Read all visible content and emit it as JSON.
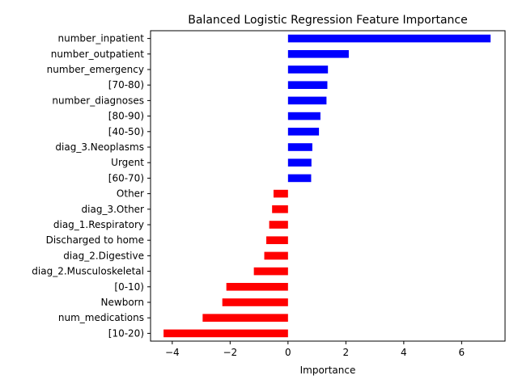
{
  "chart_data": {
    "type": "bar",
    "orientation": "horizontal",
    "title": "Balanced Logistic Regression Feature Importance",
    "xlabel": "Importance",
    "ylabel": "",
    "xlim": [
      -4.75,
      7.5
    ],
    "xticks": [
      -4,
      -2,
      0,
      2,
      4,
      6
    ],
    "xtick_labels": [
      "−4",
      "−2",
      "0",
      "2",
      "4",
      "6"
    ],
    "grid": false,
    "positive_color": "#0000ff",
    "negative_color": "#ff0000",
    "categories": [
      "number_inpatient",
      "number_outpatient",
      "number_emergency",
      "[70-80)",
      "number_diagnoses",
      "[80-90)",
      "[40-50)",
      "diag_3.Neoplasms",
      "Urgent",
      "[60-70)",
      "Other",
      "diag_3.Other",
      "diag_1.Respiratory",
      "Discharged to home",
      "diag_2.Digestive",
      "diag_2.Musculoskeletal",
      "[0-10)",
      "Newborn",
      "num_medications",
      "[10-20)"
    ],
    "values": [
      7.0,
      2.1,
      1.38,
      1.36,
      1.33,
      1.12,
      1.07,
      0.84,
      0.81,
      0.8,
      -0.5,
      -0.55,
      -0.65,
      -0.75,
      -0.82,
      -1.18,
      -2.13,
      -2.27,
      -2.95,
      -4.3
    ]
  }
}
